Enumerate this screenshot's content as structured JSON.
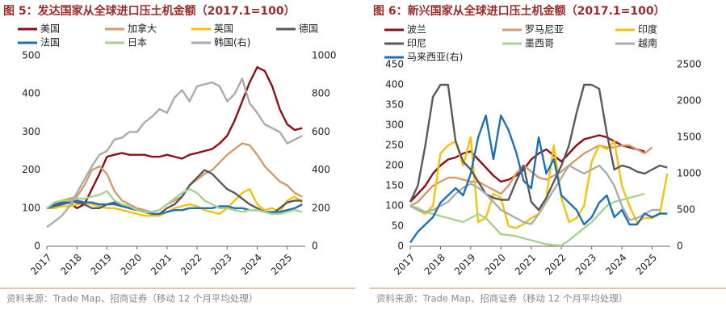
{
  "chart_data": [
    {
      "type": "line",
      "title": "图 5：发达国家从全球进口压土机金额（2017.1=100）",
      "source": "资料来源：Trade Map、招商证券（移动 12 个月平均处理）",
      "x": [
        2017,
        2017.25,
        2017.5,
        2017.75,
        2018,
        2018.25,
        2018.5,
        2018.75,
        2019,
        2019.25,
        2019.5,
        2019.75,
        2020,
        2020.25,
        2020.5,
        2020.75,
        2021,
        2021.25,
        2021.5,
        2021.75,
        2022,
        2022.25,
        2022.5,
        2022.75,
        2023,
        2023.25,
        2023.5,
        2023.75,
        2024,
        2024.25,
        2024.5,
        2024.75,
        2025,
        2025.25,
        2025.5
      ],
      "xlim": [
        2017,
        2025.6
      ],
      "xticks": [
        2017,
        2018,
        2019,
        2020,
        2021,
        2022,
        2023,
        2024,
        2025
      ],
      "ylim": [
        0,
        500
      ],
      "yticks": [
        0,
        100,
        200,
        300,
        400,
        500
      ],
      "y2lim": [
        0,
        1000
      ],
      "y2ticks": [
        0,
        200,
        400,
        600,
        800,
        1000
      ],
      "series": [
        {
          "name": "美国",
          "color": "#8b1018",
          "values": [
            100,
            105,
            110,
            115,
            100,
            110,
            150,
            190,
            235,
            240,
            245,
            240,
            240,
            240,
            235,
            235,
            240,
            235,
            230,
            240,
            245,
            250,
            255,
            270,
            290,
            330,
            380,
            430,
            470,
            460,
            420,
            360,
            320,
            305,
            310
          ]
        },
        {
          "name": "加拿大",
          "color": "#d49a6a",
          "values": [
            100,
            110,
            120,
            125,
            130,
            160,
            200,
            210,
            190,
            145,
            120,
            110,
            100,
            95,
            90,
            95,
            110,
            120,
            130,
            160,
            175,
            190,
            200,
            220,
            240,
            255,
            270,
            265,
            240,
            210,
            190,
            170,
            160,
            140,
            130
          ]
        },
        {
          "name": "英国",
          "color": "#f5c20b",
          "values": [
            100,
            100,
            105,
            105,
            110,
            115,
            110,
            105,
            100,
            100,
            95,
            90,
            85,
            80,
            80,
            80,
            90,
            100,
            105,
            110,
            105,
            95,
            90,
            85,
            100,
            120,
            140,
            150,
            110,
            95,
            100,
            90,
            120,
            130,
            115
          ]
        },
        {
          "name": "德国",
          "color": "#595959",
          "values": [
            100,
            110,
            115,
            120,
            115,
            110,
            100,
            100,
            110,
            115,
            110,
            100,
            95,
            90,
            85,
            85,
            100,
            110,
            130,
            160,
            180,
            200,
            190,
            170,
            150,
            140,
            125,
            110,
            100,
            90,
            85,
            100,
            115,
            120,
            120
          ]
        },
        {
          "name": "法国",
          "color": "#1f6fb5",
          "values": [
            100,
            105,
            110,
            115,
            120,
            115,
            115,
            110,
            110,
            110,
            105,
            100,
            95,
            90,
            85,
            85,
            90,
            95,
            95,
            100,
            100,
            100,
            100,
            105,
            105,
            100,
            100,
            95,
            95,
            90,
            90,
            90,
            95,
            100,
            110
          ]
        },
        {
          "name": "日本",
          "color": "#a9d18e",
          "values": [
            100,
            115,
            120,
            120,
            125,
            125,
            130,
            135,
            145,
            120,
            110,
            105,
            95,
            90,
            90,
            95,
            110,
            125,
            140,
            150,
            140,
            120,
            110,
            100,
            100,
            95,
            90,
            95,
            95,
            90,
            85,
            85,
            90,
            95,
            90
          ]
        },
        {
          "name": "韩国(右)",
          "color": "#ababab",
          "axis": "y2",
          "values": [
            100,
            130,
            160,
            210,
            280,
            350,
            420,
            480,
            500,
            560,
            570,
            600,
            600,
            650,
            680,
            720,
            700,
            780,
            820,
            760,
            840,
            850,
            860,
            840,
            760,
            800,
            880,
            750,
            700,
            640,
            620,
            600,
            540,
            560,
            580
          ]
        }
      ]
    },
    {
      "type": "line",
      "title": "图 6：新兴国家从全球进口压土机金额（2017.1=100）",
      "source": "资料来源：Trade Map、招商证券（移动 12 个月平均处理）",
      "x": [
        2017,
        2017.25,
        2017.5,
        2017.75,
        2018,
        2018.25,
        2018.5,
        2018.75,
        2019,
        2019.25,
        2019.5,
        2019.75,
        2020,
        2020.25,
        2020.5,
        2020.75,
        2021,
        2021.25,
        2021.5,
        2021.75,
        2022,
        2022.25,
        2022.5,
        2022.75,
        2023,
        2023.25,
        2023.5,
        2023.75,
        2024,
        2024.25,
        2024.5,
        2024.75,
        2025,
        2025.25,
        2025.5
      ],
      "xlim": [
        2017,
        2025.6
      ],
      "xticks": [
        2017,
        2018,
        2019,
        2020,
        2021,
        2022,
        2023,
        2024,
        2025
      ],
      "ylim": [
        0,
        450
      ],
      "yticks": [
        0,
        50,
        100,
        150,
        200,
        250,
        300,
        350,
        400,
        450
      ],
      "y2lim": [
        0,
        2500
      ],
      "y2ticks": [
        0,
        500,
        1000,
        1500,
        2000,
        2500
      ],
      "series": [
        {
          "name": "波兰",
          "color": "#8b1018",
          "values": [
            110,
            130,
            150,
            180,
            200,
            215,
            220,
            230,
            235,
            215,
            195,
            175,
            160,
            165,
            175,
            190,
            215,
            230,
            240,
            225,
            210,
            230,
            250,
            265,
            270,
            275,
            270,
            260,
            250,
            245,
            240,
            235,
            null,
            null,
            null
          ]
        },
        {
          "name": "罗马尼亚",
          "color": "#d49a6a",
          "values": [
            100,
            110,
            130,
            150,
            160,
            170,
            170,
            165,
            160,
            160,
            150,
            140,
            130,
            150,
            180,
            200,
            185,
            170,
            165,
            175,
            185,
            200,
            215,
            230,
            240,
            250,
            245,
            245,
            250,
            250,
            240,
            230,
            245,
            null,
            null
          ]
        },
        {
          "name": "印度",
          "color": "#f5c20b",
          "values": [
            100,
            90,
            80,
            100,
            230,
            250,
            260,
            200,
            270,
            60,
            70,
            130,
            120,
            50,
            45,
            55,
            70,
            80,
            120,
            250,
            120,
            60,
            70,
            100,
            210,
            250,
            240,
            260,
            150,
            100,
            60,
            70,
            70,
            80,
            180
          ]
        },
        {
          "name": "印尼",
          "color": "#595959",
          "values": [
            110,
            150,
            250,
            370,
            400,
            400,
            260,
            210,
            190,
            160,
            130,
            120,
            115,
            115,
            160,
            200,
            110,
            90,
            120,
            160,
            200,
            250,
            330,
            400,
            400,
            390,
            280,
            190,
            200,
            195,
            185,
            180,
            190,
            200,
            195
          ]
        },
        {
          "name": "墨西哥",
          "color": "#a9d18e",
          "values": [
            100,
            95,
            85,
            80,
            75,
            70,
            65,
            60,
            70,
            80,
            70,
            50,
            30,
            28,
            25,
            20,
            15,
            10,
            5,
            3,
            2,
            15,
            30,
            45,
            60,
            80,
            100,
            110,
            115,
            120,
            125,
            130,
            null,
            null,
            null
          ]
        },
        {
          "name": "越南",
          "color": "#ababab",
          "values": [
            100,
            90,
            85,
            90,
            100,
            110,
            130,
            145,
            155,
            145,
            130,
            110,
            90,
            80,
            70,
            60,
            55,
            80,
            110,
            140,
            170,
            200,
            190,
            180,
            190,
            200,
            180,
            150,
            100,
            65,
            70,
            80,
            90,
            90,
            null
          ]
        },
        {
          "name": "马来西亚(右)",
          "color": "#1f6fb5",
          "axis": "y2",
          "values": [
            50,
            200,
            300,
            400,
            600,
            700,
            800,
            700,
            1000,
            1500,
            1800,
            1200,
            1800,
            1600,
            1300,
            900,
            800,
            1500,
            1000,
            1200,
            700,
            600,
            500,
            300,
            400,
            600,
            700,
            400,
            500,
            300,
            300,
            450,
            400,
            450,
            450
          ]
        }
      ]
    }
  ]
}
